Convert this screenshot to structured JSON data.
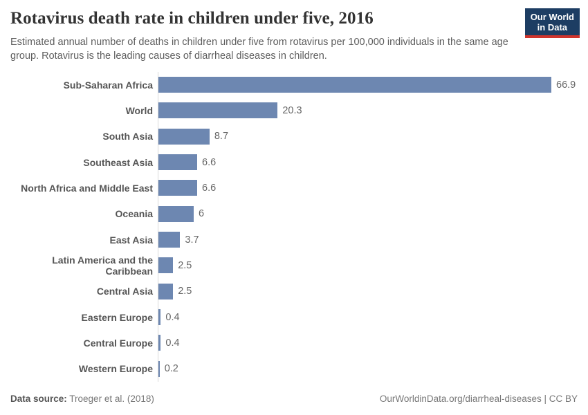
{
  "header": {
    "title": "Rotavirus death rate in children under five, 2016",
    "subtitle": "Estimated annual number of deaths in children under five from rotavirus per 100,000 individuals in the same age group. Rotavirus is the leading causes of diarrheal diseases in children.",
    "logo": {
      "line1": "Our World",
      "line2": "in Data"
    }
  },
  "chart_data": {
    "type": "bar",
    "orientation": "horizontal",
    "title": "Rotavirus death rate in children under five, 2016",
    "xlabel": "",
    "ylabel": "",
    "xlim": [
      0,
      66.9
    ],
    "grid": false,
    "legend": false,
    "categories": [
      "Sub-Saharan Africa",
      "World",
      "South Asia",
      "Southeast Asia",
      "North Africa and Middle East",
      "Oceania",
      "East Asia",
      "Latin America and the Caribbean",
      "Central Asia",
      "Eastern Europe",
      "Central Europe",
      "Western Europe"
    ],
    "values": [
      66.9,
      20.3,
      8.7,
      6.6,
      6.6,
      6,
      3.7,
      2.5,
      2.5,
      0.4,
      0.4,
      0.2
    ],
    "value_labels": [
      "66.9",
      "20.3",
      "8.7",
      "6.6",
      "6.6",
      "6",
      "3.7",
      "2.5",
      "2.5",
      "0.4",
      "0.4",
      "0.2"
    ]
  },
  "footer": {
    "source_label": "Data source:",
    "source_value": "Troeger et al. (2018)",
    "link": "OurWorldinData.org/diarrheal-diseases | CC BY"
  },
  "colors": {
    "bar": "#6d87b1",
    "axis_line": "#dadada",
    "logo_background": "#1d3d63",
    "logo_accent": "#d0342c"
  }
}
